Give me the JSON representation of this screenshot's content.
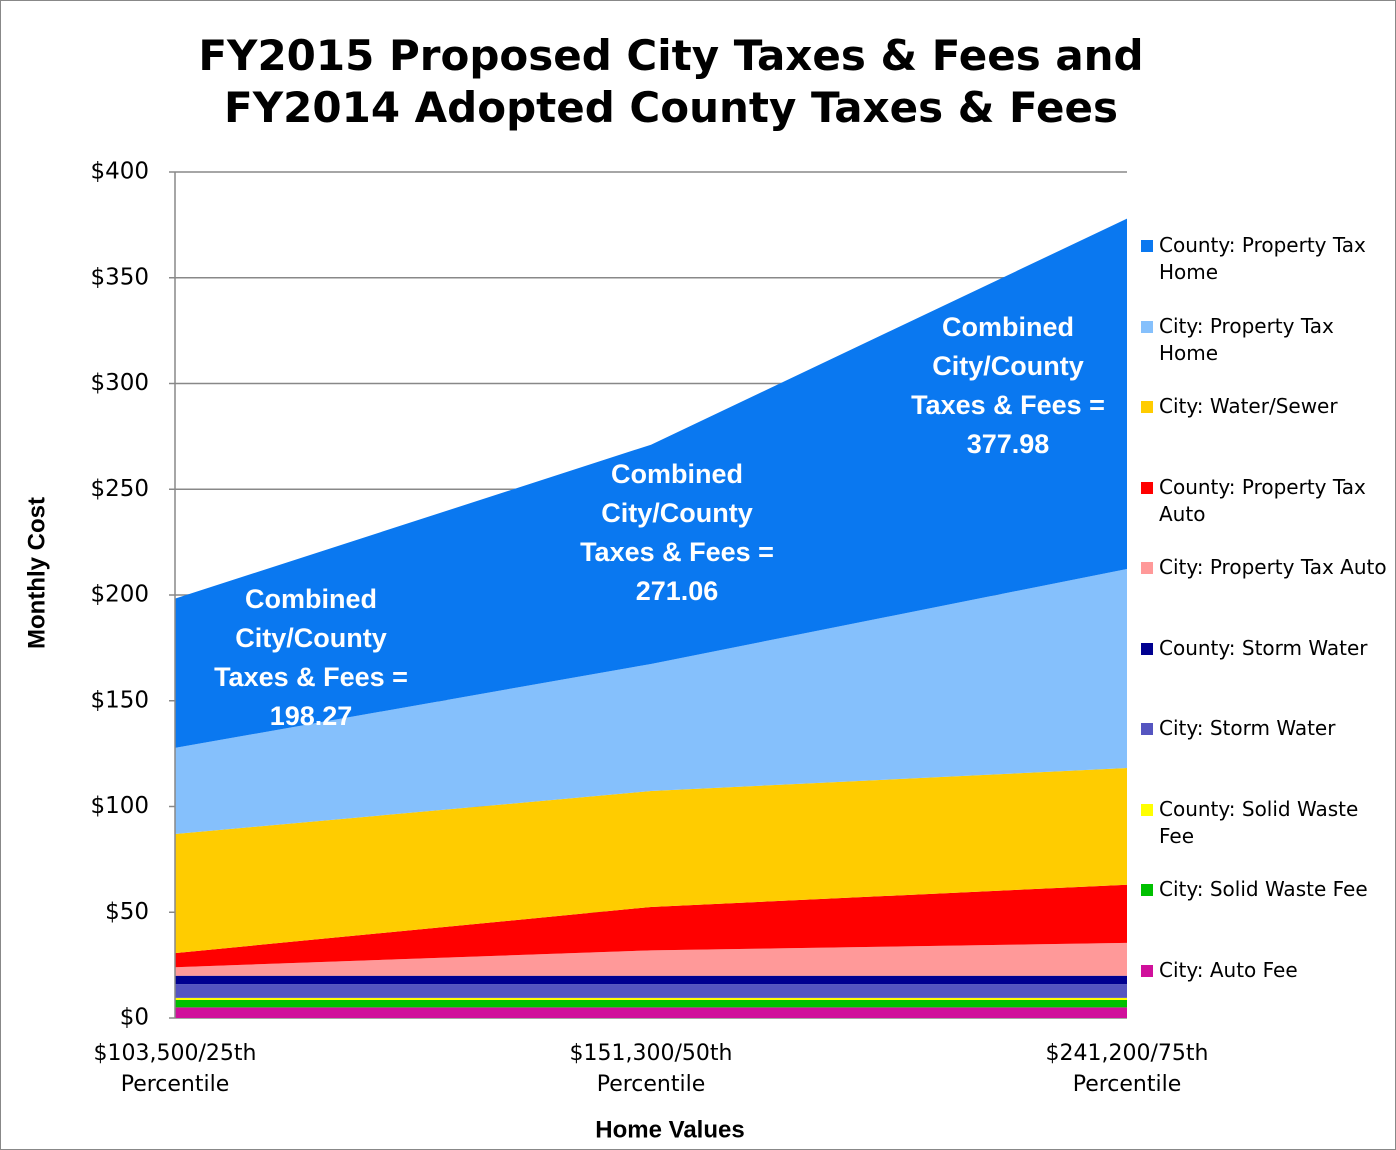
{
  "chart_data": {
    "type": "stacked_area",
    "title": [
      "FY2015 Proposed City Taxes & Fees and",
      "FY2014 Adopted County Taxes & Fees"
    ],
    "x_label": "Home Values",
    "y_label": "Monthly Cost",
    "categories": [
      "$103,500/25th Percentile",
      "$151,300/50th Percentile",
      "$241,200/75th Percentile"
    ],
    "series": [
      {
        "name": "City: Auto Fee",
        "color": "#d0109b",
        "values": [
          5,
          5,
          5
        ]
      },
      {
        "name": "City: Solid Waste Fee",
        "color": "#00c000",
        "values": [
          3.5,
          3.5,
          3.5
        ]
      },
      {
        "name": "County: Solid Waste Fee",
        "color": "#ffff00",
        "values": [
          1,
          1,
          1
        ]
      },
      {
        "name": "City: Storm Water",
        "color": "#5555c0",
        "values": [
          6.5,
          6.5,
          6.5
        ]
      },
      {
        "name": "County: Storm Water",
        "color": "#000090",
        "values": [
          4,
          4,
          4
        ]
      },
      {
        "name": "City: Property Tax Auto",
        "color": "#ff9999",
        "values": [
          4,
          12,
          15.5
        ]
      },
      {
        "name": "County: Property Tax Auto",
        "color": "#ff0000",
        "values": [
          6.7,
          20.5,
          27.5
        ]
      },
      {
        "name": "City: Water/Sewer",
        "color": "#ffcc00",
        "values": [
          56.3,
          54.8,
          55.2
        ]
      },
      {
        "name": "City: Property Tax Home",
        "color": "#85c0fc",
        "values": [
          40.7,
          60.1,
          94.1
        ]
      },
      {
        "name": "County: Property Tax Home",
        "color": "#0a78f0",
        "values": [
          70.57,
          103.66,
          165.68
        ]
      }
    ],
    "annotations": [
      [
        "Combined",
        "City/County",
        "Taxes & Fees =",
        "198.27"
      ],
      [
        "Combined",
        "City/County",
        "Taxes & Fees =",
        "271.06"
      ],
      [
        "Combined",
        "City/County",
        "Taxes & Fees =",
        "377.98"
      ]
    ],
    "ylim": [
      0,
      400
    ],
    "yticks": [
      {
        "value": 0,
        "label": "$0"
      },
      {
        "value": 50,
        "label": "$50"
      },
      {
        "value": 100,
        "label": "$100"
      },
      {
        "value": 150,
        "label": "$150"
      },
      {
        "value": 200,
        "label": "$200"
      },
      {
        "value": 250,
        "label": "$250"
      },
      {
        "value": 300,
        "label": "$300"
      },
      {
        "value": 350,
        "label": "$350"
      },
      {
        "value": 400,
        "label": "$400"
      }
    ],
    "grid": true,
    "legend": "right"
  }
}
